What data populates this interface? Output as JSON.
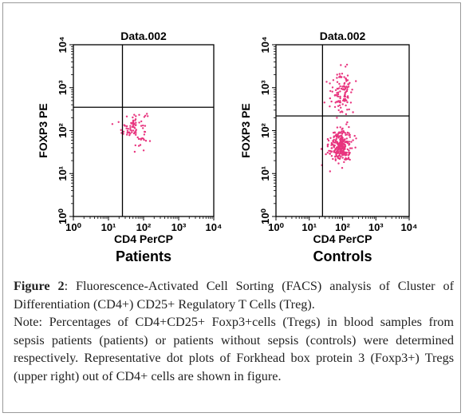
{
  "caption": {
    "label": "Figure 2",
    "title": ": Fluorescence-Activated Cell Sorting (FACS) analysis of Cluster of Differentiation (CD4+) CD25+ Regulatory T Cells (Treg).",
    "note": "Note: Percentages of CD4+CD25+ Foxp3+cells (Tregs) in blood samples from sepsis patients (patients) or patients without sepsis (controls) were determined respectively. Representative dot plots of Forkhead box protein 3 (Foxp3+) Tregs (upper right) out of CD4+ cells are shown in figure."
  },
  "colors": {
    "dots": "#e8347e",
    "axes": "#000000"
  },
  "chart_data": [
    {
      "type": "scatter",
      "title": "Data.002",
      "group_label": "Patients",
      "xlabel": "CD4 PerCP",
      "ylabel": "FOXP3 PE",
      "x_scale": "log",
      "y_scale": "log",
      "xlim": [
        1,
        10000
      ],
      "ylim": [
        1,
        10000
      ],
      "x_ticks": [
        "10⁰",
        "10¹",
        "10²",
        "10³",
        "10⁴"
      ],
      "y_ticks": [
        "10⁰",
        "10¹",
        "10²",
        "10³",
        "10⁴"
      ],
      "quadrant_gate": {
        "x": 25,
        "y": 350
      },
      "clusters": [
        {
          "center": [
            55,
            120
          ],
          "spread_log": [
            0.18,
            0.2
          ],
          "count": 85
        }
      ]
    },
    {
      "type": "scatter",
      "title": "Data.002",
      "group_label": "Controls",
      "xlabel": "CD4 PerCP",
      "ylabel": "FOXP3 PE",
      "x_scale": "log",
      "y_scale": "log",
      "xlim": [
        1,
        10000
      ],
      "ylim": [
        1,
        10000
      ],
      "x_ticks": [
        "10⁰",
        "10¹",
        "10²",
        "10³",
        "10⁴"
      ],
      "y_ticks": [
        "10⁰",
        "10¹",
        "10²",
        "10³",
        "10⁴"
      ],
      "quadrant_gate": {
        "x": 25,
        "y": 220
      },
      "clusters": [
        {
          "center": [
            85,
            45
          ],
          "spread_log": [
            0.17,
            0.2
          ],
          "count": 280
        },
        {
          "center": [
            95,
            800
          ],
          "spread_log": [
            0.17,
            0.25
          ],
          "count": 110
        }
      ]
    }
  ]
}
